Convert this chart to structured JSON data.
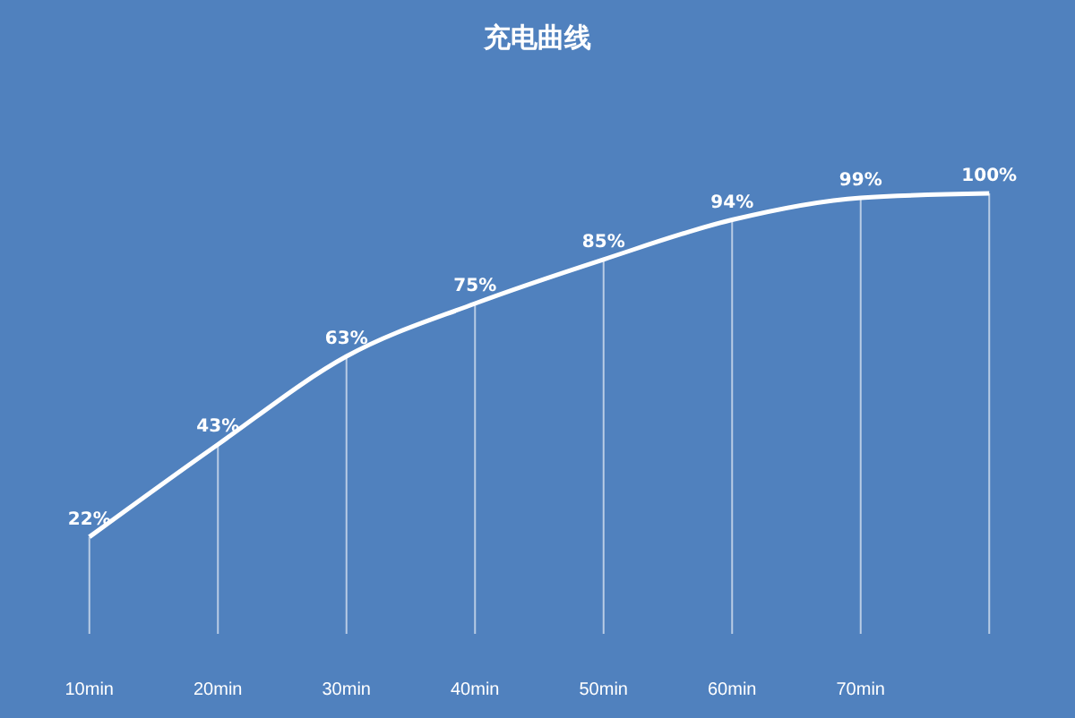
{
  "chart_data": {
    "type": "line",
    "title": "充电曲线",
    "categories": [
      "10min",
      "20min",
      "30min",
      "40min",
      "50min",
      "60min",
      "70min",
      null
    ],
    "series": [
      {
        "color": "#ffffff",
        "values": [
          22,
          43,
          63,
          75,
          85,
          94,
          99,
          100
        ],
        "value_labels": [
          "22%",
          "43%",
          "63%",
          "75%",
          "85%",
          "94%",
          "99%",
          "100%"
        ]
      }
    ],
    "marker": "none",
    "line_style": "solid",
    "grid": "x"
  }
}
